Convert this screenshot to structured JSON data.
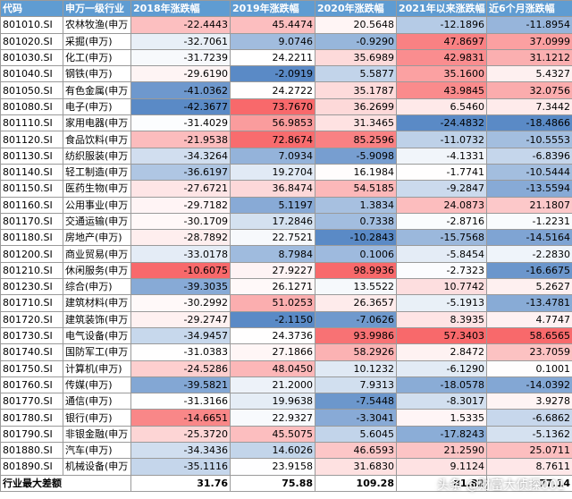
{
  "headers": [
    "代码",
    "申万一级行业",
    "2018年涨跌幅",
    "2019年涨跌幅",
    "2020年涨跌幅",
    "2021年以来涨跌幅",
    "近6个月涨跌幅"
  ],
  "rows": [
    {
      "code": "801010.SI",
      "name": "农林牧渔(申万",
      "v": [
        "-22.4443",
        "45.4474",
        "20.5648",
        "-12.1896",
        "-11.8954"
      ]
    },
    {
      "code": "801020.SI",
      "name": "采掘(申万)",
      "v": [
        "-32.7061",
        "9.0746",
        "-0.9290",
        "47.8697",
        "37.0999"
      ]
    },
    {
      "code": "801030.SI",
      "name": "化工(申万)",
      "v": [
        "-31.7239",
        "24.2211",
        "35.6989",
        "42.9831",
        "31.1212"
      ]
    },
    {
      "code": "801040.SI",
      "name": "钢铁(申万)",
      "v": [
        "-29.6190",
        "-2.0919",
        "5.5877",
        "35.1600",
        "5.4327"
      ]
    },
    {
      "code": "801050.SI",
      "name": "有色金属(申万",
      "v": [
        "-41.0362",
        "24.2722",
        "35.1787",
        "43.9845",
        "32.0756"
      ]
    },
    {
      "code": "801080.SI",
      "name": "电子(申万)",
      "v": [
        "-42.3677",
        "73.7670",
        "36.2699",
        "6.5460",
        "7.3442"
      ]
    },
    {
      "code": "801110.SI",
      "name": "家用电器(申万",
      "v": [
        "-31.4029",
        "56.9853",
        "31.3465",
        "-24.4832",
        "-18.4866"
      ]
    },
    {
      "code": "801120.SI",
      "name": "食品饮料(申万",
      "v": [
        "-21.9538",
        "72.8674",
        "85.2596",
        "-11.0732",
        "-10.5553"
      ]
    },
    {
      "code": "801130.SI",
      "name": "纺织服装(申万",
      "v": [
        "-34.3264",
        "7.0934",
        "-5.9098",
        "-4.1331",
        "-6.8396"
      ]
    },
    {
      "code": "801140.SI",
      "name": "轻工制造(申万",
      "v": [
        "-36.6197",
        "19.2704",
        "16.1984",
        "-1.7741",
        "-10.5444"
      ]
    },
    {
      "code": "801150.SI",
      "name": "医药生物(申万",
      "v": [
        "-27.6721",
        "36.8474",
        "54.5185",
        "-9.2847",
        "-13.5594"
      ]
    },
    {
      "code": "801160.SI",
      "name": "公用事业(申万",
      "v": [
        "-29.7182",
        "5.1197",
        "1.3834",
        "24.0873",
        "21.1807"
      ]
    },
    {
      "code": "801170.SI",
      "name": "交通运输(申万",
      "v": [
        "-30.1709",
        "17.2846",
        "0.7338",
        "-2.8716",
        "-1.2231"
      ]
    },
    {
      "code": "801180.SI",
      "name": "房地产(申万)",
      "v": [
        "-28.7892",
        "22.7521",
        "-10.2843",
        "-15.7568",
        "-14.5164"
      ]
    },
    {
      "code": "801200.SI",
      "name": "商业贸易(申万",
      "v": [
        "-33.0178",
        "8.7984",
        "0.1006",
        "-5.8454",
        "-2.2830"
      ]
    },
    {
      "code": "801210.SI",
      "name": "休闲服务(申万",
      "v": [
        "-10.6075",
        "27.9227",
        "98.9936",
        "-2.7323",
        "-16.6675"
      ]
    },
    {
      "code": "801230.SI",
      "name": "综合(申万)",
      "v": [
        "-39.3035",
        "26.1271",
        "13.5522",
        "10.7742",
        "5.2627"
      ]
    },
    {
      "code": "801710.SI",
      "name": "建筑材料(申万",
      "v": [
        "-30.2992",
        "51.0253",
        "26.3657",
        "-5.1913",
        "-13.4781"
      ]
    },
    {
      "code": "801720.SI",
      "name": "建筑装饰(申万",
      "v": [
        "-29.2747",
        "-2.1150",
        "-7.0626",
        "8.3935",
        "4.7747"
      ]
    },
    {
      "code": "801730.SI",
      "name": "电气设备(申万",
      "v": [
        "-34.9457",
        "24.3736",
        "93.9986",
        "57.3403",
        "58.6565"
      ]
    },
    {
      "code": "801740.SI",
      "name": "国防军工(申万",
      "v": [
        "-31.0383",
        "27.1866",
        "58.2926",
        "2.8472",
        "23.7059"
      ]
    },
    {
      "code": "801750.SI",
      "name": "计算机(申万)",
      "v": [
        "-24.5286",
        "48.0450",
        "10.1232",
        "-6.1290",
        "0.1001"
      ]
    },
    {
      "code": "801760.SI",
      "name": "传媒(申万)",
      "v": [
        "-39.5821",
        "21.2000",
        "7.9313",
        "-18.0578",
        "-14.0392"
      ]
    },
    {
      "code": "801770.SI",
      "name": "通信(申万)",
      "v": [
        "-31.3166",
        "19.9638",
        "-7.5448",
        "-8.3017",
        "3.9278"
      ]
    },
    {
      "code": "801780.SI",
      "name": "银行(申万)",
      "v": [
        "-14.6651",
        "22.9327",
        "-3.3041",
        "1.5335",
        "-6.6862"
      ]
    },
    {
      "code": "801790.SI",
      "name": "非银金融(申万",
      "v": [
        "-25.3720",
        "45.5075",
        "5.6045",
        "-17.8243",
        "-5.1362"
      ]
    },
    {
      "code": "801880.SI",
      "name": "汽车(申万)",
      "v": [
        "-34.3436",
        "14.6026",
        "46.6593",
        "21.2590",
        "25.0711"
      ]
    },
    {
      "code": "801890.SI",
      "name": "机械设备(申万",
      "v": [
        "-35.1116",
        "23.9158",
        "31.6830",
        "9.1124",
        "8.7611"
      ]
    }
  ],
  "footer": {
    "label": "行业最大差额",
    "values": [
      "31.76",
      "75.88",
      "109.28",
      "81.82",
      "77.14"
    ]
  },
  "colors": {
    "header_bg": "#5f9cd2",
    "high": "#f8696b",
    "mid": "#ffffff",
    "low": "#5a8ac6"
  },
  "watermark": "头条 @财富大侦探001"
}
